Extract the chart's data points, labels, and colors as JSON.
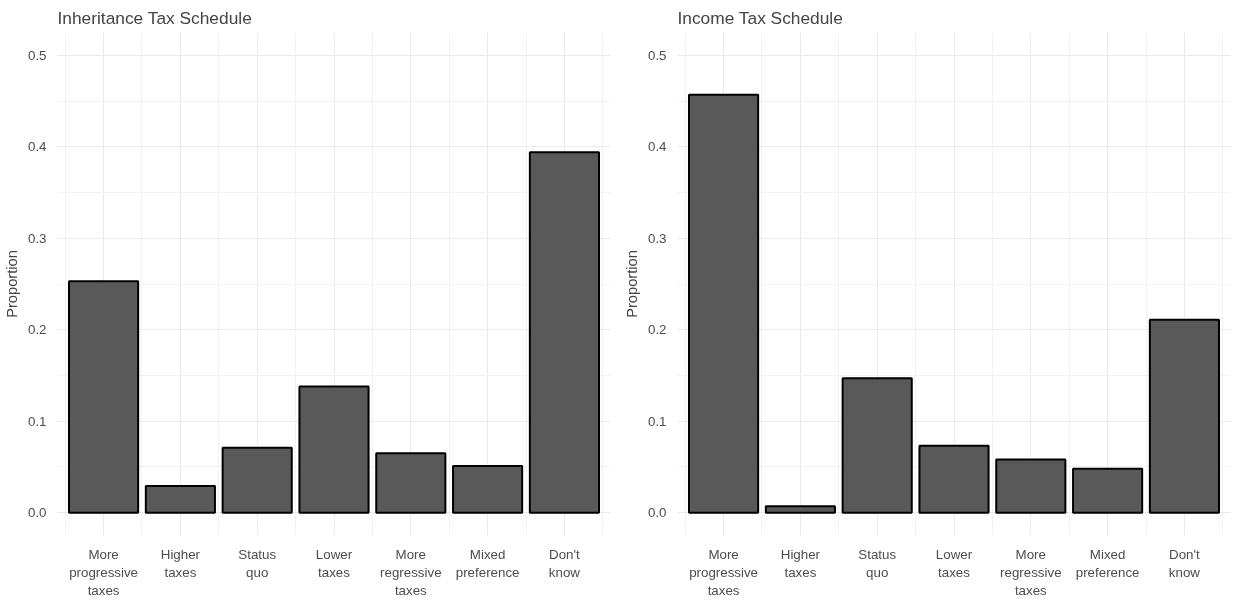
{
  "chart_data": [
    {
      "type": "bar",
      "title": "Inheritance Tax Schedule",
      "ylabel": "Proportion",
      "categories": [
        "More progressive taxes",
        "Higher taxes",
        "Status quo",
        "Lower taxes",
        "More regressive taxes",
        "Mixed preference",
        "Don't know"
      ],
      "values": [
        0.253,
        0.029,
        0.071,
        0.138,
        0.065,
        0.051,
        0.394
      ],
      "color": "#595959",
      "ylim": [
        -0.025,
        0.525
      ],
      "yticks": [
        {
          "value": 0,
          "label": "0.0"
        },
        0.1,
        0.2,
        0.3,
        0.4,
        0.5
      ],
      "grid": true
    },
    {
      "type": "bar",
      "title": "Income Tax Schedule",
      "ylabel": "Proportion",
      "categories": [
        "More progressive taxes",
        "Higher taxes",
        "Status quo",
        "Lower taxes",
        "More regressive taxes",
        "Mixed preference",
        "Don't know"
      ],
      "values": [
        0.457,
        0.007,
        0.147,
        0.073,
        0.058,
        0.048,
        0.211
      ],
      "color": "#595959",
      "ylim": [
        -0.025,
        0.525
      ],
      "yticks": [
        {
          "value": 0,
          "label": "0.0"
        },
        0.1,
        0.2,
        0.3,
        0.4,
        0.5
      ],
      "grid": true
    }
  ]
}
